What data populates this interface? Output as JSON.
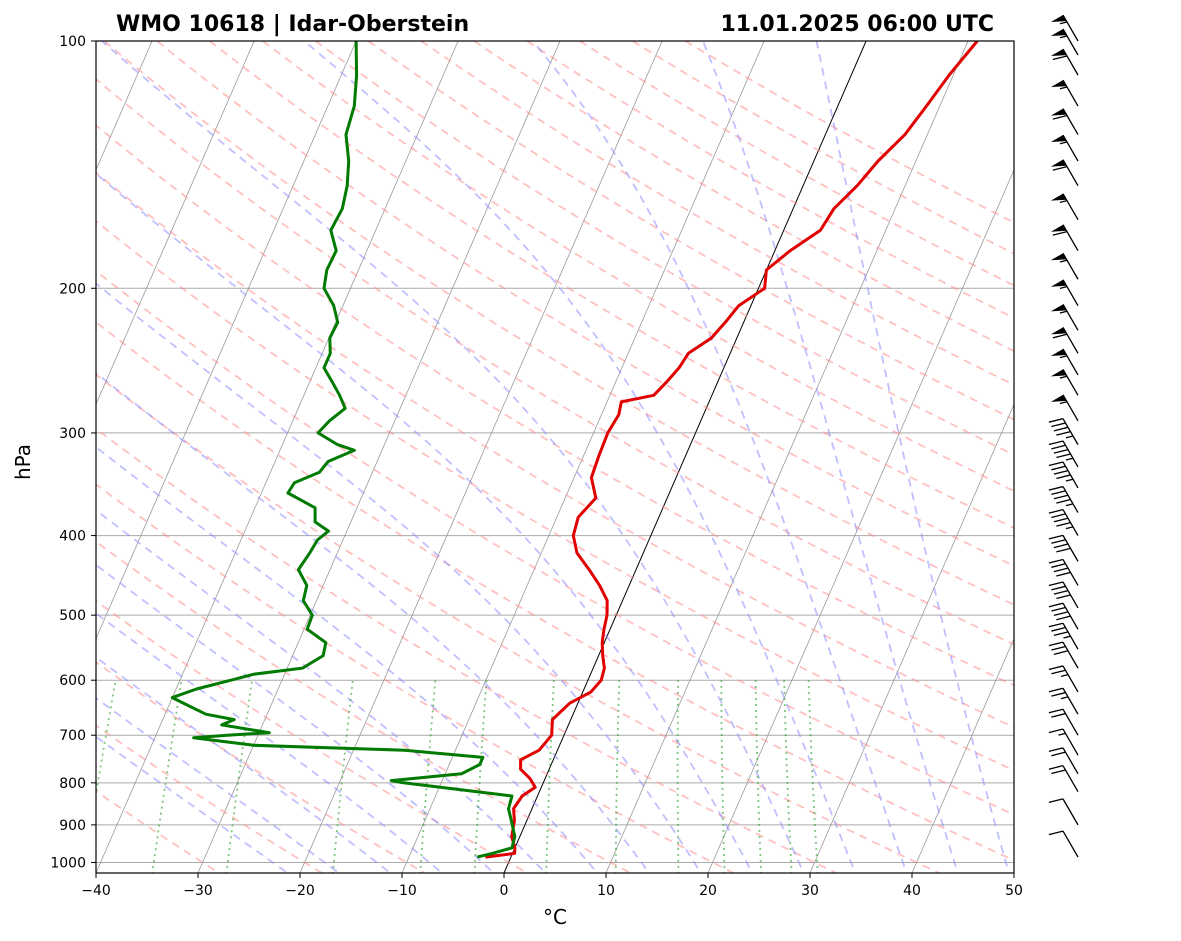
{
  "chart_data": {
    "type": "line",
    "subtype": "skew-t log-p sounding",
    "title_left": "WMO 10618 | Idar-Oberstein",
    "title_right": "11.01.2025 06:00 UTC",
    "xlabel": "°C",
    "ylabel": "hPa",
    "xlim": [
      -40,
      50
    ],
    "ylim": [
      1030,
      100
    ],
    "y_scale": "log",
    "x_ticks": [
      "−40",
      "−30",
      "−20",
      "−10",
      "0",
      "10",
      "20",
      "30",
      "40",
      "50"
    ],
    "y_ticks": [
      "1000",
      "900",
      "800",
      "700",
      "600",
      "500",
      "400",
      "300",
      "200",
      "100"
    ],
    "grid": true,
    "colors": {
      "temperature": "#e00000",
      "dewpoint": "#007a00",
      "dry_adiabats": "#ff8c8c",
      "moist_adiabats": "#8c8cff",
      "mixing_ratio": "#2ca02c",
      "isotherms": "#888888",
      "grid": "#aaaaaa"
    },
    "series": [
      {
        "type": "temperature",
        "pressure": [
          985,
          975,
          960,
          930,
          890,
          860,
          830,
          810,
          790,
          770,
          750,
          730,
          700,
          670,
          640,
          620,
          600,
          580,
          560,
          540,
          520,
          500,
          480,
          460,
          440,
          420,
          400,
          380,
          360,
          340,
          320,
          300,
          285,
          275,
          270,
          260,
          250,
          240,
          230,
          220,
          210,
          200,
          190,
          180,
          170,
          160,
          150,
          140,
          130,
          120,
          110,
          100
        ],
        "temperature": [
          -2.5,
          0.2,
          0.0,
          -0.8,
          -1.2,
          -1.8,
          -1.5,
          -0.6,
          -1.5,
          -2.8,
          -3.2,
          -1.8,
          -1.2,
          -1.8,
          -0.8,
          0.8,
          1.3,
          1.1,
          0.4,
          -0.2,
          -0.6,
          -0.9,
          -1.5,
          -2.9,
          -4.6,
          -6.5,
          -7.6,
          -7.9,
          -7.0,
          -8.3,
          -8.5,
          -8.6,
          -8.3,
          -8.6,
          -5.7,
          -5.0,
          -4.4,
          -4.1,
          -2.5,
          -1.8,
          -1.2,
          0.6,
          0.0,
          1.5,
          3.6,
          4.0,
          5.3,
          6.3,
          7.8,
          8.7,
          9.6,
          10.9
        ]
      },
      {
        "type": "dewpoint",
        "pressure": [
          985,
          975,
          960,
          930,
          890,
          860,
          830,
          815,
          800,
          795,
          780,
          760,
          745,
          730,
          720,
          705,
          700,
          695,
          680,
          670,
          660,
          645,
          630,
          615,
          600,
          590,
          580,
          560,
          540,
          520,
          500,
          480,
          460,
          440,
          420,
          405,
          395,
          385,
          370,
          355,
          345,
          335,
          325,
          315,
          310,
          300,
          290,
          280,
          270,
          260,
          250,
          240,
          230,
          220,
          210,
          200,
          190,
          180,
          170,
          160,
          150,
          140,
          130,
          120,
          110,
          100
        ],
        "dewpoint": [
          -3.3,
          -2.0,
          -0.3,
          -0.5,
          -1.5,
          -2.3,
          -2.5,
          -8.0,
          -13.7,
          -15.0,
          -8.4,
          -7.0,
          -7.0,
          -15.0,
          -30.0,
          -36.2,
          -33.0,
          -29.0,
          -34.0,
          -33.0,
          -36.0,
          -38.0,
          -40.0,
          -38.0,
          -35.0,
          -33.0,
          -28.5,
          -27.0,
          -27.3,
          -29.7,
          -29.8,
          -31.3,
          -31.6,
          -33.1,
          -32.7,
          -32.5,
          -31.8,
          -33.5,
          -34.1,
          -37.4,
          -37.2,
          -35.2,
          -34.8,
          -32.7,
          -34.6,
          -37.0,
          -36.4,
          -35.4,
          -36.5,
          -37.8,
          -39.2,
          -39.2,
          -39.9,
          -39.8,
          -40.9,
          -42.6,
          -43.1,
          -43.0,
          -44.4,
          -44.2,
          -44.7,
          -45.6,
          -47.0,
          -47.4,
          -48.5,
          -50.0
        ]
      }
    ],
    "wind_barbs": [
      {
        "pressure": 985,
        "speed_kt": 10
      },
      {
        "pressure": 900,
        "speed_kt": 10
      },
      {
        "pressure": 820,
        "speed_kt": 20
      },
      {
        "pressure": 780,
        "speed_kt": 20
      },
      {
        "pressure": 740,
        "speed_kt": 15
      },
      {
        "pressure": 700,
        "speed_kt": 20
      },
      {
        "pressure": 660,
        "speed_kt": 25
      },
      {
        "pressure": 620,
        "speed_kt": 25
      },
      {
        "pressure": 580,
        "speed_kt": 30
      },
      {
        "pressure": 550,
        "speed_kt": 35
      },
      {
        "pressure": 520,
        "speed_kt": 40
      },
      {
        "pressure": 490,
        "speed_kt": 40
      },
      {
        "pressure": 460,
        "speed_kt": 40
      },
      {
        "pressure": 430,
        "speed_kt": 40
      },
      {
        "pressure": 400,
        "speed_kt": 45
      },
      {
        "pressure": 375,
        "speed_kt": 45
      },
      {
        "pressure": 350,
        "speed_kt": 45
      },
      {
        "pressure": 330,
        "speed_kt": 45
      },
      {
        "pressure": 310,
        "speed_kt": 45
      },
      {
        "pressure": 290,
        "speed_kt": 55
      },
      {
        "pressure": 270,
        "speed_kt": 55
      },
      {
        "pressure": 255,
        "speed_kt": 55
      },
      {
        "pressure": 240,
        "speed_kt": 60
      },
      {
        "pressure": 225,
        "speed_kt": 55
      },
      {
        "pressure": 210,
        "speed_kt": 55
      },
      {
        "pressure": 195,
        "speed_kt": 55
      },
      {
        "pressure": 180,
        "speed_kt": 60
      },
      {
        "pressure": 165,
        "speed_kt": 55
      },
      {
        "pressure": 150,
        "speed_kt": 60
      },
      {
        "pressure": 140,
        "speed_kt": 55
      },
      {
        "pressure": 130,
        "speed_kt": 60
      },
      {
        "pressure": 120,
        "speed_kt": 55
      },
      {
        "pressure": 110,
        "speed_kt": 60
      },
      {
        "pressure": 104,
        "speed_kt": 55
      },
      {
        "pressure": 100,
        "speed_kt": 55
      }
    ]
  }
}
